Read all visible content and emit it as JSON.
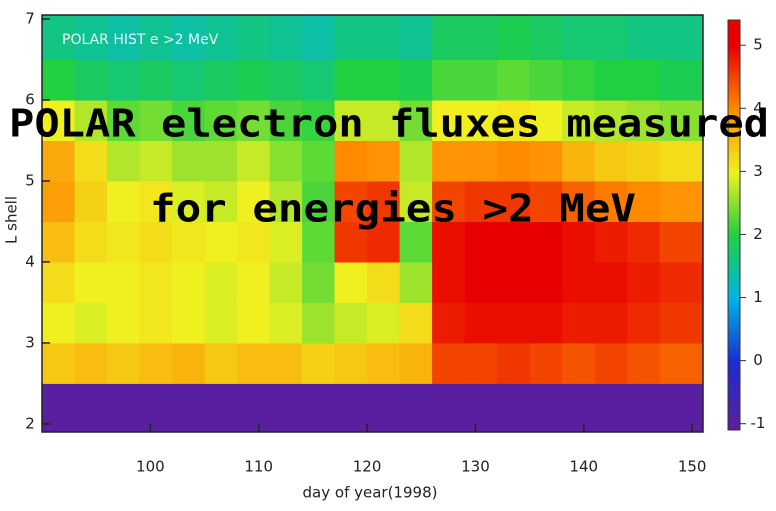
{
  "chart_data": {
    "type": "heatmap",
    "annotations": [
      "POLAR electron fluxes measured",
      "for energies >2 MeV"
    ],
    "plot_label": "POLAR HIST e >2 MeV",
    "x_label": "day of year(1998)",
    "y_label": "L shell",
    "x_edges": [
      90,
      93,
      96,
      99,
      102,
      105,
      108,
      111,
      114,
      117,
      120,
      123,
      126,
      129,
      132,
      135,
      138,
      141,
      144,
      147,
      151
    ],
    "y_edges": [
      1.9,
      2.5,
      3.0,
      3.5,
      4.0,
      4.5,
      5.0,
      5.5,
      6.0,
      6.5,
      7.05
    ],
    "z": [
      [
        -1,
        -1,
        -1,
        -1,
        -1,
        -1,
        -1,
        -1,
        -1,
        -1,
        -1,
        -1,
        -1,
        -1,
        -1,
        -1,
        -1,
        -1,
        -1,
        -1
      ],
      [
        3.4,
        3.5,
        3.4,
        3.5,
        3.6,
        3.4,
        3.5,
        3.5,
        3.3,
        3.4,
        3.5,
        3.6,
        4.5,
        4.5,
        4.6,
        4.5,
        4.4,
        4.5,
        4.4,
        4.3
      ],
      [
        3.0,
        2.9,
        3.0,
        3.1,
        3.0,
        2.9,
        3.0,
        2.9,
        2.6,
        2.8,
        2.9,
        3.2,
        4.8,
        4.9,
        4.9,
        4.9,
        4.8,
        4.8,
        4.7,
        4.6
      ],
      [
        3.2,
        3.0,
        3.0,
        3.1,
        3.0,
        2.9,
        3.0,
        2.8,
        2.4,
        3.0,
        3.2,
        2.6,
        4.9,
        5.0,
        5.0,
        5.0,
        4.9,
        4.9,
        4.8,
        4.7
      ],
      [
        3.5,
        3.2,
        3.1,
        3.2,
        3.1,
        3.0,
        3.1,
        2.9,
        2.3,
        4.6,
        4.7,
        2.3,
        4.9,
        5.0,
        5.0,
        5.0,
        4.9,
        4.8,
        4.7,
        4.5
      ],
      [
        3.8,
        3.3,
        3.0,
        3.1,
        2.9,
        2.8,
        3.0,
        2.7,
        2.2,
        4.5,
        4.6,
        2.8,
        4.5,
        4.6,
        4.6,
        4.5,
        4.3,
        4.1,
        4.0,
        3.9
      ],
      [
        3.7,
        3.2,
        2.7,
        2.8,
        2.6,
        2.6,
        2.8,
        2.5,
        2.3,
        4.0,
        3.9,
        2.7,
        3.9,
        3.9,
        4.0,
        3.9,
        3.6,
        3.4,
        3.3,
        3.2
      ],
      [
        3.0,
        2.7,
        2.3,
        2.4,
        2.2,
        2.3,
        2.4,
        2.2,
        2.1,
        2.8,
        2.8,
        2.4,
        3.0,
        3.0,
        3.1,
        3.0,
        2.8,
        2.7,
        2.6,
        2.5
      ],
      [
        2.0,
        1.8,
        1.7,
        1.8,
        1.7,
        1.8,
        1.9,
        1.8,
        1.7,
        2.0,
        2.0,
        1.9,
        2.2,
        2.2,
        2.3,
        2.2,
        2.1,
        2.0,
        2.0,
        1.9
      ],
      [
        1.6,
        1.5,
        1.4,
        1.5,
        1.4,
        1.5,
        1.6,
        1.5,
        1.4,
        1.6,
        1.6,
        1.5,
        1.8,
        1.8,
        1.9,
        1.8,
        1.7,
        1.7,
        1.6,
        1.6
      ]
    ],
    "xlim": [
      90,
      151
    ],
    "xticks": [
      100,
      110,
      120,
      130,
      140,
      150
    ],
    "ylim": [
      1.9,
      7.05
    ],
    "yticks": [
      2,
      3,
      4,
      5,
      6,
      7
    ],
    "zlim": [
      -1.1,
      5.4
    ],
    "zticks": [
      -1,
      0,
      1,
      2,
      3,
      4,
      5
    ],
    "colorbar_colors": [
      "#5a1ea0",
      "#1a2dd0",
      "#00b4e6",
      "#20d040",
      "#f0f020",
      "#ff8a00",
      "#e80000"
    ]
  }
}
